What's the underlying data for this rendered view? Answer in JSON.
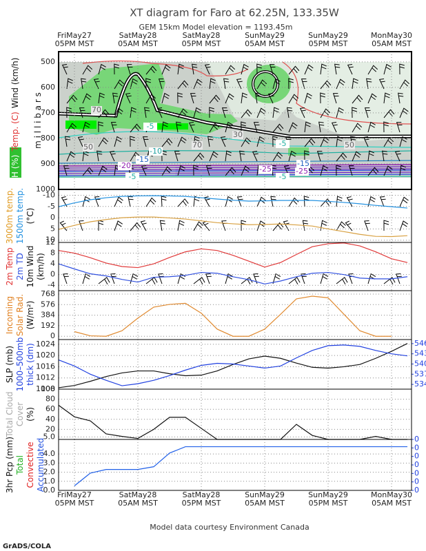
{
  "title": "XT diagram for Faro at 62.25N, 133.35W",
  "subtitle": "GEM 15km Model elevation = 1193.45m",
  "credit": "Model data courtesy Environment Canada",
  "logo": "GrADS/COLA",
  "categories": [
    null,
    "FriMay27\n05PM MST",
    null,
    null,
    null,
    "SatMay28\n05AM MST",
    null,
    null,
    null,
    "SatMay28\n05PM MST",
    null,
    null,
    null,
    "SunMay29\n05AM MST",
    null,
    null,
    null,
    "SunMay29\n05PM MST",
    null,
    null,
    null,
    "MonMay30\n05AM MST",
    null
  ],
  "chart_data": [
    {
      "type": "contour",
      "ylim": [
        1000,
        460
      ],
      "yticks": [
        500,
        600,
        700,
        800,
        900,
        1000
      ],
      "grid": true,
      "side_labels": [
        [
          {
            "text": "RH (%)",
            "color": "#ffffff"
          },
          {
            "text": "Temp. (C)",
            "color": "#e03030"
          },
          {
            "text": "Wind (km/h)",
            "color": "#111111"
          }
        ],
        [
          {
            "text": "m i l l i b a r s",
            "color": "#111111"
          }
        ]
      ],
      "rh_labels": [
        70,
        50,
        70,
        30,
        50
      ],
      "temp_labels": [
        -5,
        -10,
        -15,
        -20,
        -25,
        -25,
        -5,
        -15,
        -5,
        -5
      ]
    },
    {
      "type": "line",
      "ylim": [
        11,
        -12.6
      ],
      "yticks": [
        -10,
        -5,
        0,
        5,
        10
      ],
      "grid": true,
      "side_labels": [
        [
          {
            "text": "3000m temp.",
            "color": "#e09a20"
          }
        ],
        [
          {
            "text": "1500m temp.",
            "color": "#2090e0"
          }
        ],
        [
          {
            "text": "(°C)",
            "color": "#111111"
          }
        ]
      ],
      "series": [
        {
          "color": "#2090e0",
          "values": [
            -4.9,
            -6.6,
            -8,
            -8.9,
            -9.5,
            -9.7,
            -9.8,
            -9.7,
            -9.5,
            -8.9,
            -8.3,
            -7.8,
            -7.4,
            -7.5,
            -7.7,
            -7.7,
            -7.7,
            -7.3,
            -6.8,
            -6.2,
            -5.5,
            -4.9,
            -4.3
          ]
        },
        {
          "color": "#d8a040",
          "values": [
            5.2,
            3.4,
            1.8,
            0.8,
            0,
            -0.3,
            -0.3,
            0.1,
            0.6,
            1.4,
            2.2,
            2.7,
            3.1,
            3.0,
            2.8,
            3.2,
            3.7,
            5.0,
            6.2,
            7.4,
            8.3,
            8.4,
            8
          ]
        }
      ]
    },
    {
      "type": "line",
      "ylim": [
        -6,
        12
      ],
      "yticks": [
        12,
        8,
        4,
        0,
        -4
      ],
      "grid": true,
      "side_labels": [
        [
          {
            "text": "2m Temp",
            "color": "#e03030"
          }
        ],
        [
          {
            "text": "2m TD",
            "color": "#3050e0"
          }
        ],
        [
          {
            "text": "10m Wind",
            "color": "#111111"
          }
        ],
        [
          {
            "text": "(km/h)",
            "color": "#111111"
          }
        ]
      ],
      "series": [
        {
          "color": "#e03838",
          "values": [
            9,
            8,
            6.3,
            4.3,
            3,
            2.6,
            4,
            6.4,
            8.5,
            9.6,
            9,
            7.2,
            5,
            2.8,
            4.5,
            7.5,
            10.4,
            11.5,
            11.8,
            10.7,
            8.5,
            5.9,
            4.5
          ]
        },
        {
          "color": "#3050e0",
          "values": [
            4,
            2.1,
            0.3,
            -0.5,
            -1.8,
            -2.8,
            -1,
            -0.8,
            -0.3,
            0.8,
            0.5,
            -0.8,
            -1.9,
            -3.5,
            -2.4,
            -0.8,
            0.5,
            0.8,
            0,
            -1.3,
            -1.6,
            -1.6,
            -0.8
          ]
        }
      ]
    },
    {
      "type": "line",
      "ylim": [
        -60,
        830
      ],
      "yticks": [
        768,
        576,
        384,
        192,
        0
      ],
      "grid": true,
      "side_labels": [
        [
          {
            "text": "Incoming",
            "color": "#e08020"
          }
        ],
        [
          {
            "text": "Solar Rad.",
            "color": "#e08020"
          }
        ],
        [
          {
            "text": "(W/m²)",
            "color": "#111111"
          }
        ]
      ],
      "series": [
        {
          "color": "#e08a30",
          "values": [
            null,
            84,
            8,
            0,
            100,
            330,
            530,
            580,
            600,
            420,
            130,
            0,
            0,
            130,
            400,
            680,
            730,
            700,
            400,
            100,
            0,
            0,
            null
          ]
        }
      ]
    },
    {
      "type": "line",
      "ylim": [
        1008,
        1025.7
      ],
      "yticks": [
        1024,
        1020,
        1016,
        1012,
        1008
      ],
      "y2lim": [
        532.6,
        547.2
      ],
      "y2ticks": [
        546,
        543,
        540,
        537,
        534
      ],
      "grid": true,
      "side_labels": [
        [
          {
            "text": "SLP (mb)",
            "color": "#111111"
          }
        ],
        [
          {
            "text": "1000–500mb",
            "color": "#2040e0"
          }
        ],
        [
          {
            "text": "thick (dm)",
            "color": "#2040e0"
          }
        ]
      ],
      "series": [
        {
          "color": "#111111",
          "values": [
            1008.5,
            1009.3,
            1010.8,
            1012.5,
            1013.8,
            1014.5,
            1014.5,
            1013.5,
            1012.8,
            1013,
            1014.5,
            1016.8,
            1018.8,
            1019.8,
            1019,
            1017.3,
            1015.8,
            1015.5,
            1016,
            1016.8,
            1019,
            1021.5,
            1024.3
          ]
        },
        {
          "color": "#2040e0",
          "axis": "y2",
          "values": [
            541.2,
            539.4,
            537,
            535.2,
            533.6,
            534.2,
            535.2,
            536.6,
            538.2,
            539.6,
            540.2,
            540,
            539.4,
            538.8,
            539.4,
            541.8,
            544,
            545.4,
            545.6,
            545.2,
            544,
            543,
            542.4
          ]
        }
      ]
    },
    {
      "type": "line",
      "ylim": [
        0,
        100
      ],
      "yticks": [
        100,
        80,
        60,
        40,
        20,
        {
          "value": 5,
          "label": "5.0"
        }
      ],
      "grid": true,
      "side_labels": [
        [
          {
            "text": "Total Cloud",
            "color": "#aaaaaa"
          }
        ],
        [
          {
            "text": "Cover",
            "color": "#aaaaaa"
          }
        ],
        [
          {
            "text": "(%)",
            "color": "#111111"
          }
        ]
      ],
      "series": [
        {
          "color": "#111111",
          "values": [
            68,
            45,
            37,
            11,
            6,
            2,
            20,
            44,
            44,
            22,
            0,
            0,
            0,
            0,
            0,
            30,
            8,
            0,
            0,
            0,
            6,
            0,
            0
          ]
        }
      ]
    },
    {
      "type": "line",
      "ylim": [
        0,
        5.6
      ],
      "yticks": [
        {
          "value": 4,
          "label": "4.0"
        },
        {
          "value": 3,
          "label": "3.0"
        },
        {
          "value": 2,
          "label": "2.0"
        },
        {
          "value": 1,
          "label": "1.0"
        },
        {
          "value": 0,
          "label": "0.0"
        }
      ],
      "y2lim": [
        0,
        0.0006
      ],
      "y2ticks": [
        {
          "value": 0.0006,
          "label": "0"
        },
        {
          "value": 0.0005,
          "label": "0"
        },
        {
          "value": 0.0004,
          "label": "0"
        },
        {
          "value": 0.0003,
          "label": "0"
        },
        {
          "value": 0.0002,
          "label": "0"
        },
        {
          "value": 0.0001,
          "label": "0"
        },
        {
          "value": 0,
          "label": "0"
        }
      ],
      "grid": true,
      "side_labels": [
        [
          {
            "text": "3hr Pcp (mm)",
            "color": "#111111"
          }
        ],
        [
          {
            "text": "Total",
            "color": "#20b020"
          }
        ],
        [
          {
            "text": "Convective",
            "color": "#e02020"
          }
        ],
        [
          {
            "text": "Accumulated",
            "color": "#2050e0"
          }
        ]
      ],
      "series": [
        {
          "color": "#2060e8",
          "values": [
            null,
            0.5,
            1.9,
            2.3,
            2.3,
            2.3,
            2.6,
            4.1,
            4.8,
            4.8,
            4.8,
            4.8,
            4.8,
            4.8,
            4.8,
            4.8,
            4.8,
            4.8,
            4.8,
            4.8,
            4.8,
            4.8,
            4.8
          ]
        }
      ]
    }
  ]
}
